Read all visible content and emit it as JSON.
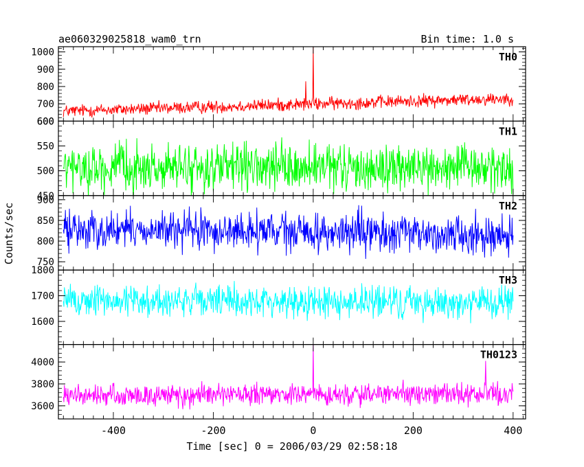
{
  "header": {
    "title": "ae060329025818_wam0_trn",
    "bin_time": "Bin time: 1.0 s"
  },
  "axes": {
    "xlabel": "Time [sec] 0 = 2006/03/29 02:58:18",
    "ylabel": "Counts/sec"
  },
  "chart_data": {
    "type": "line",
    "title": "ae060329025818_wam0_trn",
    "xlabel": "Time [sec] 0 = 2006/03/29 02:58:18",
    "ylabel": "Counts/sec",
    "xlim": [
      -510,
      425
    ],
    "xticks": [
      -400,
      -200,
      0,
      200,
      400
    ],
    "x_range": [
      -500,
      400
    ],
    "bin_time_s": 1.0,
    "grid": false,
    "panels": [
      {
        "name": "TH0",
        "color": "#ff0000",
        "ylim": [
          600,
          1030
        ],
        "yticks": [
          600,
          700,
          800,
          900,
          1000
        ],
        "baseline_start": 658,
        "baseline_end": 732,
        "noise_amplitude": 32,
        "spikes": [
          {
            "x": 0,
            "y": 1030
          },
          {
            "x": -15,
            "y": 830
          }
        ]
      },
      {
        "name": "TH1",
        "color": "#00ff00",
        "ylim": [
          450,
          600
        ],
        "yticks": [
          450,
          500,
          550,
          600
        ],
        "baseline_start": 505,
        "baseline_end": 505,
        "noise_amplitude": 40,
        "spikes": []
      },
      {
        "name": "TH2",
        "color": "#0000ff",
        "ylim": [
          730,
          910
        ],
        "yticks": [
          750,
          800,
          850,
          900
        ],
        "baseline_start": 828,
        "baseline_end": 815,
        "noise_amplitude": 40,
        "spikes": []
      },
      {
        "name": "TH3",
        "color": "#00ffff",
        "ylim": [
          1510,
          1800
        ],
        "yticks": [
          1600,
          1700,
          1800
        ],
        "baseline_start": 1682,
        "baseline_end": 1672,
        "noise_amplitude": 55,
        "spikes": []
      },
      {
        "name": "TH0123",
        "color": "#ff00ff",
        "ylim": [
          3480,
          4160
        ],
        "yticks": [
          3600,
          3800,
          4000
        ],
        "baseline_start": 3690,
        "baseline_end": 3710,
        "noise_amplitude": 85,
        "spikes": [
          {
            "x": 0,
            "y": 4160
          },
          {
            "x": 345,
            "y": 4010
          }
        ]
      }
    ]
  }
}
